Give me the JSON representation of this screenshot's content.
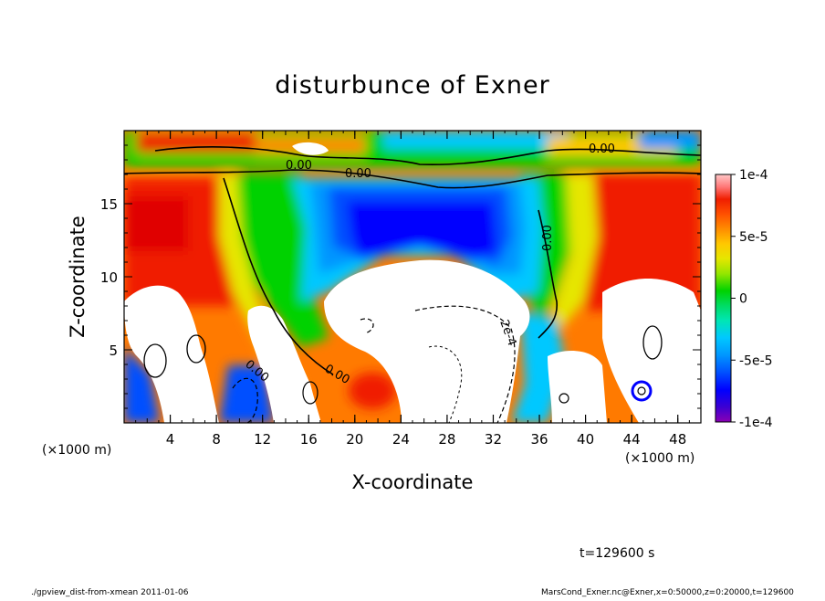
{
  "chart_data": {
    "type": "heatmap",
    "title": "disturbunce of Exner",
    "xlabel": "X-coordinate",
    "ylabel": "Z-coordinate",
    "x_unit": "(×1000 m)",
    "y_unit": "(×1000 m)",
    "xlim": [
      0,
      50
    ],
    "ylim": [
      0,
      20
    ],
    "x_ticks": [
      "4",
      "8",
      "12",
      "16",
      "20",
      "24",
      "28",
      "32",
      "36",
      "40",
      "44",
      "48"
    ],
    "y_ticks": [
      "5",
      "10",
      "15"
    ],
    "colorbar": {
      "min": -0.0001,
      "max": 0.0001,
      "ticks": [
        "1e-4",
        "5e-5",
        "0",
        "-5e-5",
        "-1e-4"
      ]
    },
    "contour_labels": [
      "0.00",
      "0.00",
      "0.00",
      "0.00",
      "0.00",
      "0.00",
      "2e-4"
    ],
    "time_label": "t=129600 s"
  },
  "footer": {
    "left": "./gpview_dist-from-xmean  2011-01-06",
    "right": "MarsCond_Exner.nc@Exner,x=0:50000,z=0:20000,t=129600"
  },
  "palette": [
    "#8b00b4",
    "#3c00d2",
    "#0000ff",
    "#0050ff",
    "#0096ff",
    "#00c8ff",
    "#00e6b4",
    "#00dc64",
    "#00d200",
    "#96e600",
    "#e6e600",
    "#ffc800",
    "#ff8c00",
    "#ff5000",
    "#f01e00",
    "#ff7878",
    "#ffc8c8"
  ]
}
